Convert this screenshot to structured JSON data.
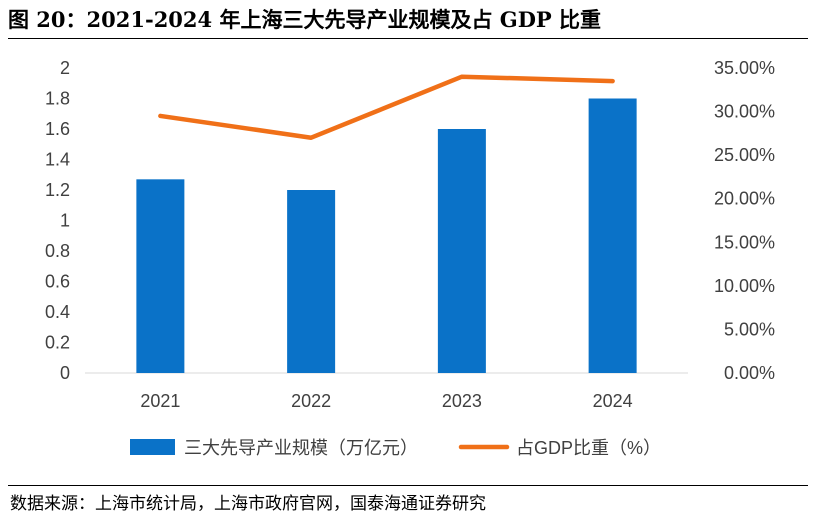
{
  "header": {
    "title": "图 20：2021-2024 年上海三大先导产业规模及占 GDP 比重"
  },
  "footer": {
    "source": "数据来源：上海市统计局，上海市政府官网，国泰海通证券研究"
  },
  "colors": {
    "bar": "#0A72C8",
    "line": "#F07018",
    "axis_text": "#404040",
    "axis_line": "#D9D9D9"
  },
  "chart_data": {
    "type": "bar+line",
    "categories": [
      "2021",
      "2022",
      "2023",
      "2024"
    ],
    "series": [
      {
        "name": "三大先导产业规模（万亿元）",
        "kind": "bar",
        "axis": "left",
        "values": [
          1.27,
          1.2,
          1.6,
          1.8
        ]
      },
      {
        "name": "占GDP比重（%）",
        "kind": "line",
        "axis": "right",
        "values": [
          29.5,
          27.0,
          34.0,
          33.5
        ]
      }
    ],
    "left_axis": {
      "min": 0,
      "max": 2,
      "step": 0.2,
      "tick_labels": [
        "0",
        "0.2",
        "0.4",
        "0.6",
        "0.8",
        "1",
        "1.2",
        "1.4",
        "1.6",
        "1.8",
        "2"
      ]
    },
    "right_axis": {
      "min": 0,
      "max": 35,
      "step": 5,
      "tick_labels": [
        "0.00%",
        "5.00%",
        "10.00%",
        "15.00%",
        "20.00%",
        "25.00%",
        "30.00%",
        "35.00%"
      ]
    },
    "legend": {
      "position": "bottom"
    },
    "grid": false
  }
}
